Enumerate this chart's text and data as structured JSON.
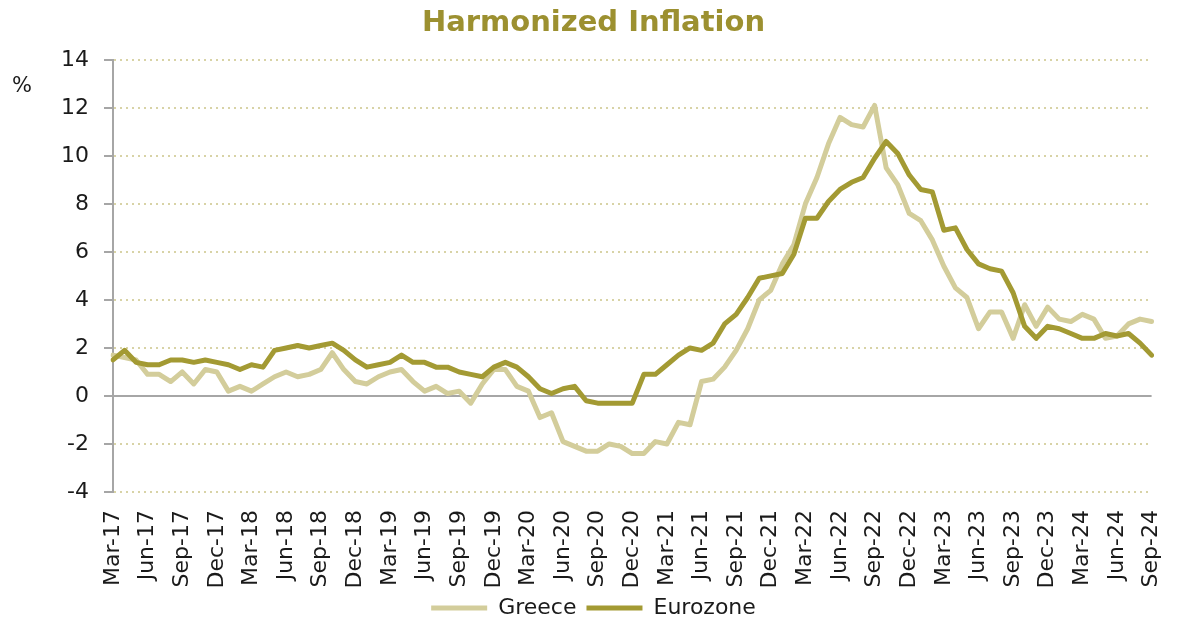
{
  "chart_data": {
    "type": "line",
    "title": "Harmonized Inflation",
    "ylabel": "%",
    "categories": [
      "Mar-17",
      null,
      null,
      "Jun-17",
      null,
      null,
      "Sep-17",
      null,
      null,
      "Dec-17",
      null,
      null,
      "Mar-18",
      null,
      null,
      "Jun-18",
      null,
      null,
      "Sep-18",
      null,
      null,
      "Dec-18",
      null,
      null,
      "Mar-19",
      null,
      null,
      "Jun-19",
      null,
      null,
      "Sep-19",
      null,
      null,
      "Dec-19",
      null,
      null,
      "Mar-20",
      null,
      null,
      "Jun-20",
      null,
      null,
      "Sep-20",
      null,
      null,
      "Dec-20",
      null,
      null,
      "Mar-21",
      null,
      null,
      "Jun-21",
      null,
      null,
      "Sep-21",
      null,
      null,
      "Dec-21",
      null,
      null,
      "Mar-22",
      null,
      null,
      "Jun-22",
      null,
      null,
      "Sep-22",
      null,
      null,
      "Dec-22",
      null,
      null,
      "Mar-23",
      null,
      null,
      "Jun-23",
      null,
      null,
      "Sep-23",
      null,
      null,
      "Dec-23",
      null,
      null,
      "Mar-24",
      null,
      null,
      "Jun-24",
      null,
      null,
      "Sep-24"
    ],
    "series": [
      {
        "name": "Greece",
        "color": "#d3cd9b",
        "values": [
          1.7,
          1.6,
          1.5,
          0.9,
          0.9,
          0.6,
          1.0,
          0.5,
          1.1,
          1.0,
          0.2,
          0.4,
          0.2,
          0.5,
          0.8,
          1.0,
          0.8,
          0.9,
          1.1,
          1.8,
          1.1,
          0.6,
          0.5,
          0.8,
          1.0,
          1.1,
          0.6,
          0.2,
          0.4,
          0.1,
          0.2,
          -0.3,
          0.5,
          1.1,
          1.1,
          0.4,
          0.2,
          -0.9,
          -0.7,
          -1.9,
          -2.1,
          -2.3,
          -2.3,
          -2.0,
          -2.1,
          -2.4,
          -2.4,
          -1.9,
          -2.0,
          -1.1,
          -1.2,
          0.6,
          0.7,
          1.2,
          1.9,
          2.8,
          4.0,
          4.4,
          5.5,
          6.3,
          8.0,
          9.1,
          10.5,
          11.6,
          11.3,
          11.2,
          12.1,
          9.5,
          8.8,
          7.6,
          7.3,
          6.5,
          5.4,
          4.5,
          4.1,
          2.8,
          3.5,
          3.5,
          2.4,
          3.8,
          2.9,
          3.7,
          3.2,
          3.1,
          3.4,
          3.2,
          2.4,
          2.5,
          3.0,
          3.2,
          3.1
        ]
      },
      {
        "name": "Eurozone",
        "color": "#a39a33",
        "values": [
          1.5,
          1.9,
          1.4,
          1.3,
          1.3,
          1.5,
          1.5,
          1.4,
          1.5,
          1.4,
          1.3,
          1.1,
          1.3,
          1.2,
          1.9,
          2.0,
          2.1,
          2.0,
          2.1,
          2.2,
          1.9,
          1.5,
          1.2,
          1.3,
          1.4,
          1.7,
          1.4,
          1.4,
          1.2,
          1.2,
          1.0,
          0.9,
          0.8,
          1.2,
          1.4,
          1.2,
          0.8,
          0.3,
          0.1,
          0.3,
          0.4,
          -0.2,
          -0.3,
          -0.3,
          -0.3,
          -0.3,
          0.9,
          0.9,
          1.3,
          1.7,
          2.0,
          1.9,
          2.2,
          3.0,
          3.4,
          4.1,
          4.9,
          5.0,
          5.1,
          5.9,
          7.4,
          7.4,
          8.1,
          8.6,
          8.9,
          9.1,
          9.9,
          10.6,
          10.1,
          9.2,
          8.6,
          8.5,
          6.9,
          7.0,
          6.1,
          5.5,
          5.3,
          5.2,
          4.3,
          2.9,
          2.4,
          2.9,
          2.8,
          2.6,
          2.4,
          2.4,
          2.6,
          2.5,
          2.6,
          2.2,
          1.7
        ]
      }
    ],
    "ylim": [
      -4,
      14
    ],
    "yticks": [
      -4,
      -2,
      0,
      2,
      4,
      6,
      8,
      10,
      12,
      14
    ],
    "grid": "y",
    "legend": "bottom",
    "marker": "none",
    "line_style": "solid",
    "ref_lines": [
      {
        "axis": "y",
        "value": 0,
        "color": "#a6a6a6"
      }
    ]
  }
}
